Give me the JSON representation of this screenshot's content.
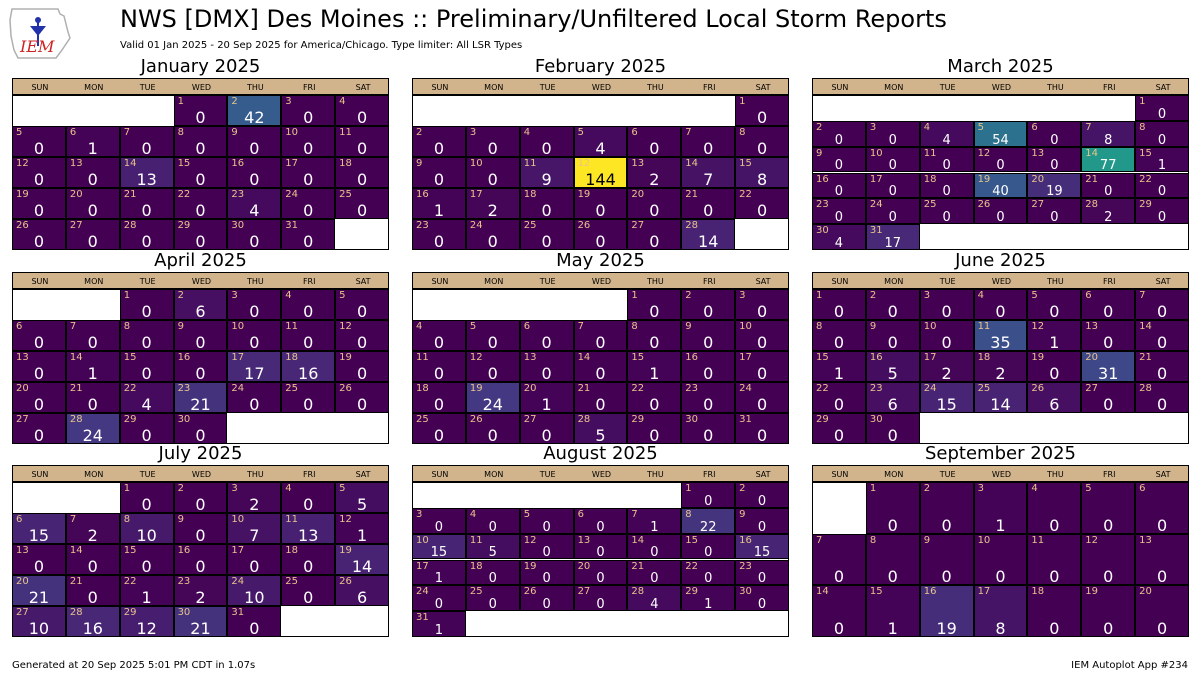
{
  "logo": {
    "text": "IEM"
  },
  "header": {
    "title": "NWS [DMX] Des Moines :: Preliminary/Unfiltered Local Storm Reports",
    "subtitle": "Valid 01 Jan 2025 - 20 Sep 2025 for America/Chicago. Type limiter: All LSR Types"
  },
  "weekday_labels": [
    "SUN",
    "MON",
    "TUE",
    "WED",
    "THU",
    "FRI",
    "SAT"
  ],
  "colors": {
    "header": "#d2b48c",
    "day_number": "#e9c48a",
    "colormap": "viridis"
  },
  "footer": {
    "left": "Generated at 20 Sep 2025 5:01 PM CDT in 1.07s",
    "right": "IEM Autoplot App #234"
  },
  "chart_data": {
    "type": "heatmap",
    "color_max": 144,
    "months": [
      {
        "title": "January 2025",
        "first_weekday": 3,
        "counts": [
          0,
          42,
          0,
          0,
          0,
          1,
          0,
          0,
          0,
          0,
          0,
          0,
          0,
          13,
          0,
          0,
          0,
          0,
          0,
          0,
          0,
          0,
          4,
          0,
          0,
          0,
          0,
          0,
          0,
          0,
          0
        ]
      },
      {
        "title": "February 2025",
        "first_weekday": 6,
        "counts": [
          0,
          0,
          0,
          0,
          4,
          0,
          0,
          0,
          0,
          0,
          9,
          144,
          2,
          7,
          8,
          1,
          2,
          0,
          0,
          0,
          0,
          0,
          0,
          0,
          0,
          0,
          0,
          14
        ]
      },
      {
        "title": "March 2025",
        "first_weekday": 6,
        "counts": [
          0,
          0,
          0,
          4,
          54,
          0,
          8,
          0,
          0,
          0,
          0,
          0,
          0,
          77,
          1,
          0,
          0,
          0,
          40,
          19,
          0,
          0,
          0,
          0,
          0,
          0,
          0,
          2,
          0,
          4,
          17
        ]
      },
      {
        "title": "April 2025",
        "first_weekday": 2,
        "counts": [
          0,
          6,
          0,
          0,
          0,
          0,
          0,
          0,
          0,
          0,
          0,
          0,
          0,
          1,
          0,
          0,
          17,
          16,
          0,
          0,
          0,
          4,
          21,
          0,
          0,
          0,
          0,
          24,
          0,
          0
        ]
      },
      {
        "title": "May 2025",
        "first_weekday": 4,
        "counts": [
          0,
          0,
          0,
          0,
          0,
          0,
          0,
          0,
          0,
          0,
          0,
          0,
          0,
          0,
          1,
          0,
          0,
          0,
          24,
          1,
          0,
          0,
          0,
          0,
          0,
          0,
          0,
          5,
          0,
          0,
          0
        ]
      },
      {
        "title": "June 2025",
        "first_weekday": 0,
        "counts": [
          0,
          0,
          0,
          0,
          0,
          0,
          0,
          0,
          0,
          0,
          35,
          1,
          0,
          0,
          1,
          5,
          2,
          2,
          0,
          31,
          0,
          0,
          6,
          15,
          14,
          6,
          0,
          0,
          0,
          0
        ]
      },
      {
        "title": "July 2025",
        "first_weekday": 2,
        "counts": [
          0,
          0,
          2,
          0,
          5,
          15,
          2,
          10,
          0,
          7,
          13,
          1,
          0,
          0,
          0,
          0,
          0,
          0,
          14,
          21,
          0,
          1,
          2,
          10,
          0,
          6,
          10,
          16,
          12,
          21,
          0
        ]
      },
      {
        "title": "August 2025",
        "first_weekday": 5,
        "counts": [
          0,
          0,
          0,
          0,
          0,
          0,
          1,
          22,
          0,
          15,
          5,
          0,
          0,
          0,
          0,
          15,
          1,
          0,
          0,
          0,
          0,
          0,
          0,
          0,
          0,
          0,
          0,
          4,
          1,
          0,
          1
        ]
      },
      {
        "title": "September 2025",
        "first_weekday": 1,
        "counts": [
          0,
          0,
          1,
          0,
          0,
          0,
          0,
          0,
          0,
          0,
          0,
          0,
          0,
          0,
          1,
          19,
          8,
          0,
          0,
          0
        ]
      }
    ]
  }
}
